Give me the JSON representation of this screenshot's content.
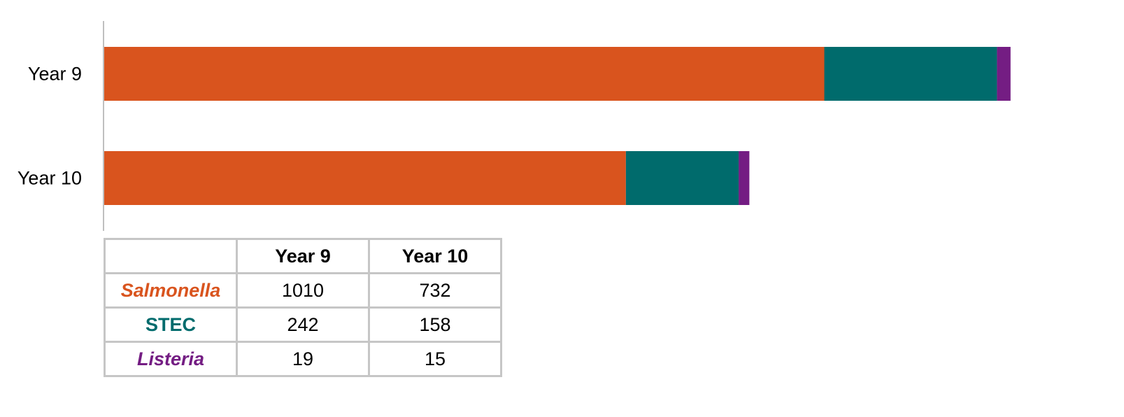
{
  "chart_data": {
    "type": "bar",
    "orientation": "horizontal",
    "stacked": true,
    "categories": [
      "Year 9",
      "Year 10"
    ],
    "series": [
      {
        "name": "Salmonella",
        "values": [
          1010,
          732
        ],
        "color": "#d9541e",
        "italic": true
      },
      {
        "name": "STEC",
        "values": [
          242,
          158
        ],
        "color": "#006b6c",
        "italic": false
      },
      {
        "name": "Listeria",
        "values": [
          19,
          15
        ],
        "color": "#741d83",
        "italic": true
      }
    ],
    "title": "",
    "xlabel": "",
    "ylabel": "",
    "xlim": [
      0,
      1300
    ],
    "grid": false,
    "legend": "data-table-below"
  },
  "colors": {
    "axis_line": "#bfbfbf",
    "table_border": "#c6c6c6"
  }
}
